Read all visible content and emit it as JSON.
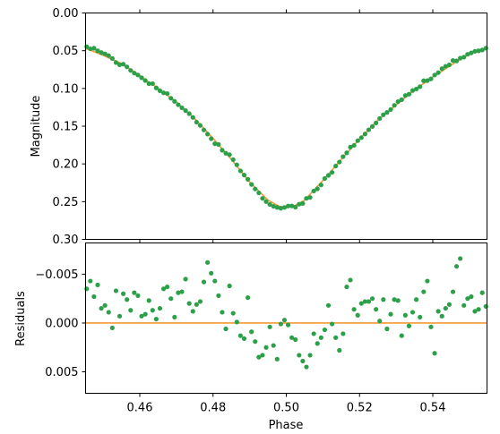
{
  "colors": {
    "data": "#2ca049",
    "model": "#f59a34"
  },
  "chart_data": [
    {
      "type": "scatter",
      "panel": "top",
      "title": "",
      "xlabel": "",
      "ylabel": "Magnitude",
      "xlim": [
        0.4452,
        0.5548
      ],
      "ylim": [
        0.3,
        0.0
      ],
      "y_inverted": true,
      "xticks": [
        0.46,
        0.48,
        0.5,
        0.52,
        0.54
      ],
      "xtick_labels_shown": false,
      "yticks": [
        0.0,
        0.05,
        0.1,
        0.15,
        0.2,
        0.25,
        0.3
      ],
      "ytick_labels": [
        "0.00",
        "0.05",
        "0.10",
        "0.15",
        "0.20",
        "0.25",
        "0.30"
      ],
      "grid": false,
      "legend": "none",
      "model_series": {
        "x": [
          0.4452,
          0.45,
          0.455,
          0.46,
          0.465,
          0.47,
          0.475,
          0.48,
          0.485,
          0.49,
          0.495,
          0.498,
          0.5,
          0.502,
          0.505,
          0.51,
          0.515,
          0.52,
          0.525,
          0.53,
          0.535,
          0.54,
          0.545,
          0.55,
          0.5548
        ],
        "y": [
          0.047,
          0.056,
          0.067,
          0.083,
          0.1,
          0.118,
          0.14,
          0.166,
          0.194,
          0.224,
          0.248,
          0.256,
          0.258,
          0.256,
          0.248,
          0.222,
          0.194,
          0.167,
          0.142,
          0.122,
          0.102,
          0.085,
          0.069,
          0.054,
          0.047
        ]
      },
      "observations": {
        "x": [
          0.4455,
          0.4465,
          0.4475,
          0.4485,
          0.4495,
          0.4505,
          0.4515,
          0.4525,
          0.4535,
          0.4545,
          0.4555,
          0.4565,
          0.4575,
          0.4585,
          0.4595,
          0.4605,
          0.4615,
          0.4625,
          0.4635,
          0.4645,
          0.4655,
          0.4665,
          0.4675,
          0.4685,
          0.4695,
          0.4705,
          0.4715,
          0.4725,
          0.4735,
          0.4745,
          0.4755,
          0.4765,
          0.4775,
          0.4785,
          0.4795,
          0.4805,
          0.4815,
          0.4825,
          0.4835,
          0.4845,
          0.4855,
          0.4865,
          0.4875,
          0.4885,
          0.4895,
          0.4905,
          0.4915,
          0.4925,
          0.4935,
          0.4945,
          0.4955,
          0.4965,
          0.4975,
          0.4985,
          0.4995,
          0.5005,
          0.5015,
          0.5025,
          0.5035,
          0.5045,
          0.5055,
          0.5065,
          0.5075,
          0.5085,
          0.5095,
          0.5105,
          0.5115,
          0.5125,
          0.5135,
          0.5145,
          0.5155,
          0.5165,
          0.5175,
          0.5185,
          0.5195,
          0.5205,
          0.5215,
          0.5225,
          0.5235,
          0.5245,
          0.5255,
          0.5265,
          0.5275,
          0.5285,
          0.5295,
          0.5305,
          0.5315,
          0.5325,
          0.5335,
          0.5345,
          0.5355,
          0.5365,
          0.5375,
          0.5385,
          0.5395,
          0.5405,
          0.5415,
          0.5425,
          0.5435,
          0.5445,
          0.5455,
          0.5465,
          0.5475,
          0.5485,
          0.5495,
          0.5505,
          0.5515,
          0.5525,
          0.5535,
          0.5545
        ],
        "y": [
          0.0447,
          0.0475,
          0.0467,
          0.0501,
          0.0525,
          0.0542,
          0.0565,
          0.0603,
          0.0657,
          0.0686,
          0.0678,
          0.0714,
          0.0761,
          0.0797,
          0.0822,
          0.0858,
          0.0895,
          0.0937,
          0.0936,
          0.0993,
          0.103,
          0.1058,
          0.1068,
          0.113,
          0.1171,
          0.1216,
          0.1256,
          0.1294,
          0.1334,
          0.1384,
          0.1447,
          0.149,
          0.155,
          0.1605,
          0.1666,
          0.1733,
          0.1742,
          0.1819,
          0.1859,
          0.1877,
          0.1943,
          0.2012,
          0.2092,
          0.2148,
          0.2204,
          0.2272,
          0.2332,
          0.2384,
          0.2457,
          0.2499,
          0.2537,
          0.2562,
          0.2576,
          0.2588,
          0.2577,
          0.2558,
          0.2557,
          0.2573,
          0.2534,
          0.2524,
          0.2457,
          0.2445,
          0.2359,
          0.233,
          0.2279,
          0.2194,
          0.2152,
          0.2113,
          0.2028,
          0.1975,
          0.1904,
          0.1853,
          0.1777,
          0.1754,
          0.1692,
          0.1652,
          0.1604,
          0.1548,
          0.1504,
          0.1457,
          0.1398,
          0.1349,
          0.1318,
          0.1279,
          0.1224,
          0.1175,
          0.1149,
          0.1094,
          0.1076,
          0.1027,
          0.1007,
          0.0977,
          0.0898,
          0.0897,
          0.0873,
          0.0822,
          0.0791,
          0.0738,
          0.0706,
          0.0688,
          0.063,
          0.0636,
          0.0599,
          0.0585,
          0.0548,
          0.0529,
          0.0508,
          0.0501,
          0.0491,
          0.0467
        ]
      }
    },
    {
      "type": "scatter",
      "panel": "bottom",
      "title": "",
      "xlabel": "Phase",
      "ylabel": "Residuals",
      "xlim": [
        0.4452,
        0.5548
      ],
      "ylim": [
        0.0072,
        -0.0082
      ],
      "y_inverted": true,
      "xticks": [
        0.46,
        0.48,
        0.5,
        0.52,
        0.54
      ],
      "xtick_labels": [
        "0.46",
        "0.48",
        "0.50",
        "0.52",
        "0.54"
      ],
      "yticks": [
        -0.005,
        0.0,
        0.005
      ],
      "ytick_labels": [
        "−0.005",
        "0.000",
        "0.005"
      ],
      "grid": false,
      "legend": "none",
      "zero_line": 0.0,
      "residuals": {
        "x": [
          0.4455,
          0.4465,
          0.4475,
          0.4485,
          0.4495,
          0.4505,
          0.4515,
          0.4525,
          0.4535,
          0.4545,
          0.4555,
          0.4565,
          0.4575,
          0.4585,
          0.4595,
          0.4605,
          0.4615,
          0.4625,
          0.4635,
          0.4645,
          0.4655,
          0.4665,
          0.4675,
          0.4685,
          0.4695,
          0.4705,
          0.4715,
          0.4725,
          0.4735,
          0.4745,
          0.4755,
          0.4765,
          0.4775,
          0.4785,
          0.4795,
          0.4805,
          0.4815,
          0.4825,
          0.4835,
          0.4845,
          0.4855,
          0.4865,
          0.4875,
          0.4885,
          0.4895,
          0.4905,
          0.4915,
          0.4925,
          0.4935,
          0.4945,
          0.4955,
          0.4965,
          0.4975,
          0.4985,
          0.4995,
          0.5005,
          0.5015,
          0.5025,
          0.5035,
          0.5045,
          0.5055,
          0.5065,
          0.5075,
          0.5085,
          0.5095,
          0.5105,
          0.5115,
          0.5125,
          0.5135,
          0.5145,
          0.5155,
          0.5165,
          0.5175,
          0.5185,
          0.5195,
          0.5205,
          0.5215,
          0.5225,
          0.5235,
          0.5245,
          0.5255,
          0.5265,
          0.5275,
          0.5285,
          0.5295,
          0.5305,
          0.5315,
          0.5325,
          0.5335,
          0.5345,
          0.5355,
          0.5365,
          0.5375,
          0.5385,
          0.5395,
          0.5405,
          0.5415,
          0.5425,
          0.5435,
          0.5445,
          0.5455,
          0.5465,
          0.5475,
          0.5485,
          0.5495,
          0.5505,
          0.5515,
          0.5525,
          0.5535,
          0.5545
        ],
        "y": [
          -0.0035,
          -0.0043,
          -0.0027,
          -0.0039,
          -0.0015,
          -0.0018,
          -0.0011,
          0.0005,
          -0.0033,
          -0.0007,
          -0.003,
          -0.0024,
          -0.0013,
          -0.0031,
          -0.0028,
          -0.0007,
          -0.0009,
          -0.0023,
          -0.0013,
          -0.0004,
          -0.0015,
          -0.0035,
          -0.0037,
          -0.0025,
          -0.0006,
          -0.0031,
          -0.0032,
          -0.0045,
          -0.002,
          -0.0012,
          -0.0019,
          -0.0022,
          -0.0042,
          -0.0062,
          -0.0051,
          -0.0043,
          -0.0028,
          -0.0011,
          0.0006,
          -0.0038,
          -0.001,
          -0.0001,
          0.0013,
          0.0016,
          -0.0026,
          0.0009,
          0.0019,
          0.0035,
          0.0033,
          0.0025,
          0.0004,
          0.0023,
          0.0037,
          0.0001,
          -0.0003,
          0.0002,
          0.0015,
          0.0017,
          0.0033,
          0.0039,
          0.0045,
          0.0033,
          0.0011,
          0.0021,
          0.0015,
          0.0007,
          -0.0018,
          0.0001,
          0.0015,
          0.0028,
          0.0011,
          -0.0037,
          -0.0044,
          -0.0014,
          -0.0008,
          -0.002,
          -0.0022,
          -0.0022,
          -0.0025,
          -0.0014,
          -0.0002,
          -0.0024,
          0.0006,
          -0.0009,
          -0.0024,
          -0.0023,
          0.0013,
          -0.0008,
          0.0003,
          -0.0011,
          -0.0024,
          -0.0006,
          -0.0032,
          -0.0043,
          0.0004,
          0.0031,
          -0.0012,
          -0.0007,
          -0.0015,
          -0.0019,
          -0.0032,
          -0.0058,
          -0.0066,
          -0.0018,
          -0.0025,
          -0.0027,
          -0.0012,
          -0.0014,
          -0.0031,
          -0.0017
        ]
      }
    }
  ]
}
